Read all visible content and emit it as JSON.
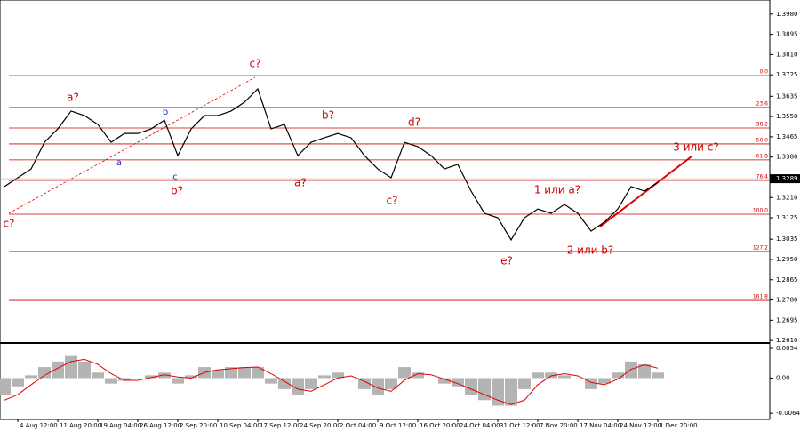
{
  "chart_data": {
    "type": "line",
    "color": "#000000",
    "categories": [
      null,
      "4 Aug 12:00",
      null,
      null,
      "11 Aug 20:00",
      null,
      null,
      "19 Aug 04:00",
      null,
      null,
      "26 Aug 12:00",
      null,
      null,
      "2 Sep 20:00",
      null,
      null,
      "10 Sep 04:00",
      null,
      null,
      "17 Sep 12:00",
      null,
      null,
      "24 Sep 20:00",
      null,
      null,
      "2 Oct 04:00",
      null,
      null,
      "9 Oct 12:00",
      null,
      null,
      "16 Oct 20:00",
      null,
      null,
      "24 Oct 04:00",
      null,
      null,
      "31 Oct 12:00",
      null,
      null,
      "7 Nov 20:00",
      null,
      null,
      "17 Nov 04:00",
      null,
      null,
      "24 Nov 12:00",
      null,
      null,
      "1 Dec 20:00"
    ],
    "values": [
      1.3256,
      1.3293,
      1.333,
      1.3442,
      1.3498,
      1.3573,
      1.3554,
      1.3517,
      1.3442,
      1.3479,
      1.3479,
      1.3498,
      1.3535,
      1.3386,
      1.3498,
      1.3554,
      1.3554,
      1.3573,
      1.361,
      1.3666,
      1.3498,
      1.3517,
      1.3386,
      1.3442,
      1.3461,
      1.3479,
      1.3461,
      1.3386,
      1.333,
      1.3293,
      1.3442,
      1.3424,
      1.3386,
      1.333,
      1.3349,
      1.3237,
      1.3144,
      1.3125,
      1.3032,
      1.3125,
      1.3162,
      1.3144,
      1.3181,
      1.3144,
      1.3069,
      1.3107,
      1.3162,
      1.3256,
      1.3237,
      1.3274
    ],
    "ylim": [
      1.2603,
      1.4039
    ],
    "yticks": [
      {
        "value": 1.398,
        "label": "1.3980"
      },
      1.3895,
      {
        "value": 1.381,
        "label": "1.3810"
      },
      1.3725,
      1.3635,
      {
        "value": 1.355,
        "label": "1.3550"
      },
      1.3465,
      {
        "value": 1.338,
        "label": "1.3380"
      },
      {
        "value": 1.321,
        "label": "1.3210"
      },
      1.3125,
      1.3035,
      {
        "value": 1.295,
        "label": "1.2950"
      },
      1.2865,
      {
        "value": 1.278,
        "label": "1.2780"
      },
      1.2695,
      {
        "value": 1.261,
        "label": "1.2610"
      }
    ],
    "current_price": 1.3289,
    "fib_color": "#cc0000",
    "fib_levels": [
      {
        "label": "0.0",
        "value": 1.3722
      },
      {
        "label": "23.6",
        "value": 1.3588
      },
      {
        "label": "38.2",
        "value": 1.3502
      },
      {
        "label": "50.0",
        "value": 1.3435
      },
      {
        "label": "61.8",
        "value": 1.3368
      },
      {
        "label": "76.4",
        "value": 1.3282
      },
      {
        "label": "100.0",
        "value": 1.314
      },
      {
        "label": "127.2",
        "value": 1.2983
      },
      {
        "label": "161.8",
        "value": 1.2778
      }
    ],
    "annotations": [
      "c?",
      "a?",
      "c?",
      "b",
      "a",
      "c",
      "b?",
      "b?",
      "a?",
      "d?",
      "c?",
      "e?",
      "1 или a?",
      "2 или b?",
      "3 или c?"
    ],
    "oscillator": {
      "histogram_color": "#b4b4b4",
      "signal_color": "#e00000",
      "values": [
        -0.003,
        -0.0015,
        0.0005,
        0.002,
        0.003,
        0.004,
        0.003,
        0.001,
        -0.001,
        -0.0005,
        0,
        0.0005,
        0.001,
        -0.001,
        0.0005,
        0.002,
        0.0015,
        0.002,
        0.002,
        0.002,
        -0.001,
        -0.002,
        -0.003,
        -0.002,
        0.0005,
        0.001,
        0,
        -0.002,
        -0.003,
        -0.002,
        0.002,
        0.001,
        0,
        -0.001,
        -0.0015,
        -0.003,
        -0.004,
        -0.005,
        -0.005,
        -0.002,
        0.001,
        0.001,
        0.0005,
        0,
        -0.002,
        -0.001,
        0.001,
        0.003,
        0.0025,
        0.001
      ],
      "signal": [
        -0.004,
        -0.003,
        -0.0012,
        0.0005,
        0.0018,
        0.003,
        0.0034,
        0.0025,
        0.0008,
        -0.0004,
        -0.0004,
        0.0001,
        0.0006,
        0.0002,
        0,
        0.001,
        0.0015,
        0.0017,
        0.0019,
        0.002,
        0.0008,
        -0.0006,
        -0.002,
        -0.0024,
        -0.0012,
        0,
        0.0004,
        -0.0006,
        -0.0018,
        -0.0024,
        -0.0004,
        0.0008,
        0.0006,
        -0.0002,
        -0.001,
        -0.002,
        -0.003,
        -0.004,
        -0.0048,
        -0.004,
        -0.0012,
        0.0004,
        0.0008,
        0.0004,
        -0.0008,
        -0.0012,
        -0.0002,
        0.0016,
        0.0024,
        0.0018
      ],
      "ylim": [
        -0.0075,
        0.0062
      ],
      "yticks": [
        0.0054,
        {
          "value": 0,
          "label": "0.00"
        },
        -0.0064
      ]
    }
  }
}
